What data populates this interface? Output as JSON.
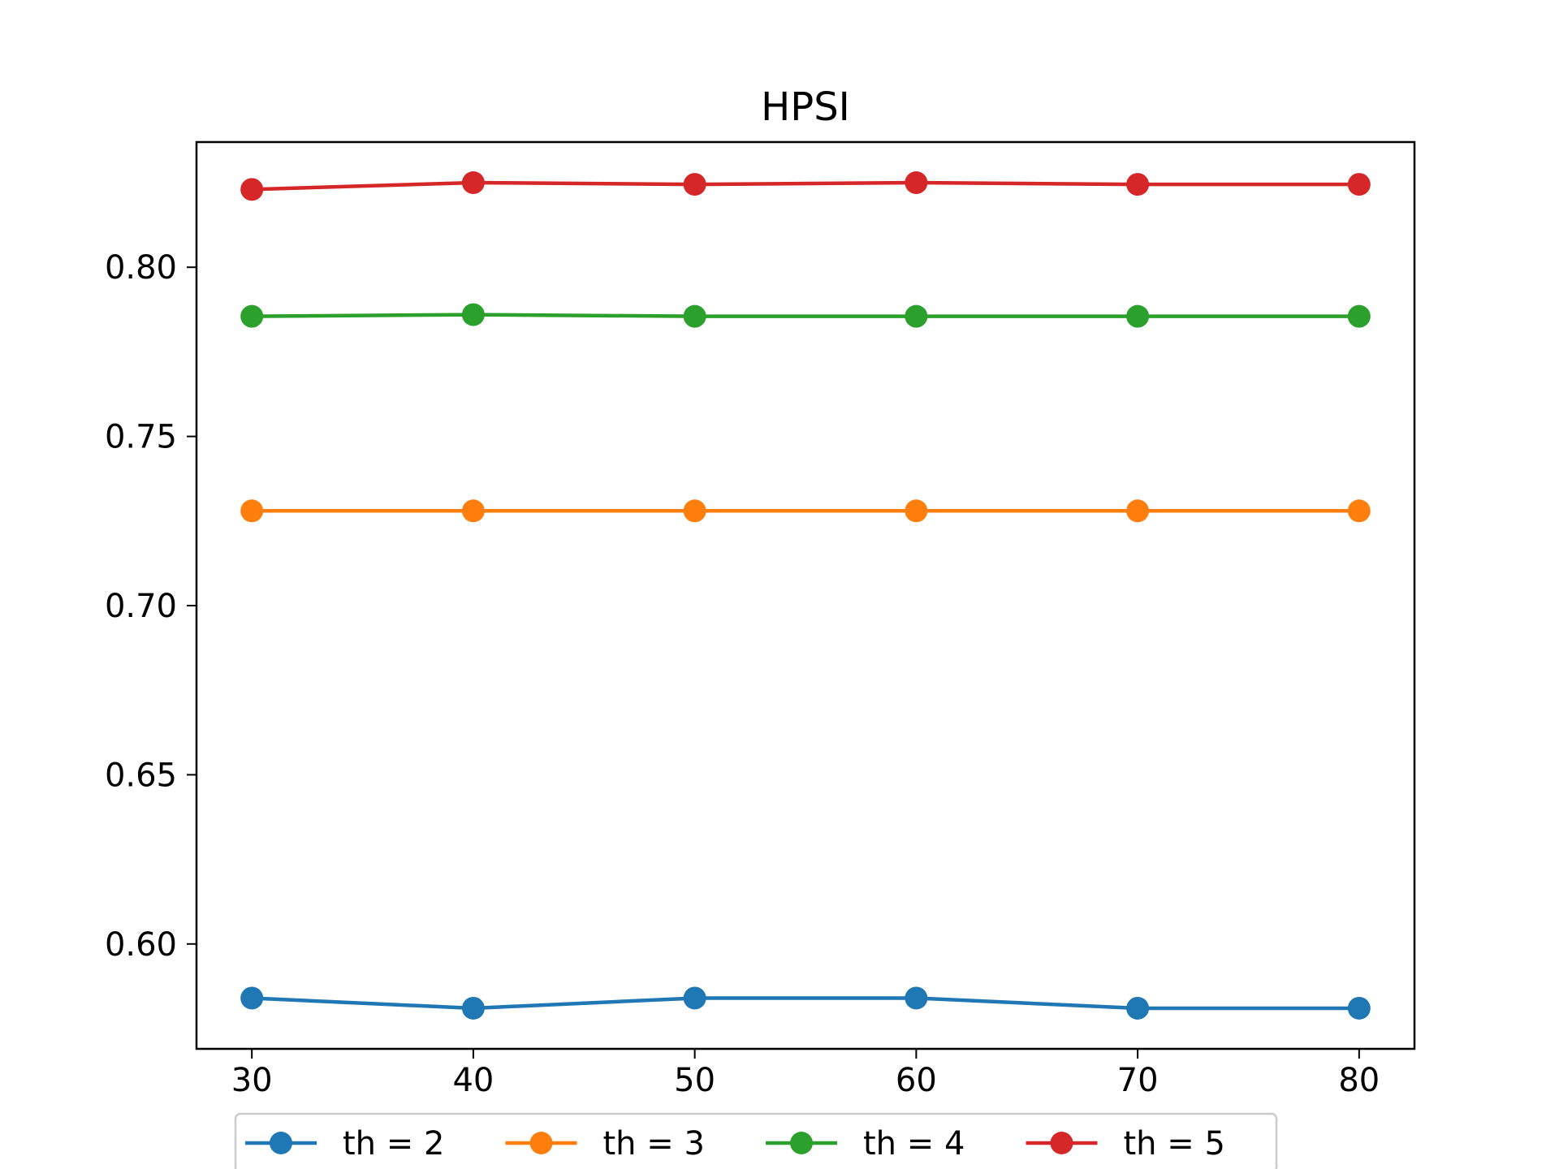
{
  "chart_data": {
    "type": "line",
    "title": "HPSI",
    "xlabel": "",
    "ylabel": "",
    "x": [
      30,
      40,
      50,
      60,
      70,
      80
    ],
    "xlim": [
      27.5,
      82.5
    ],
    "ylim": [
      0.569,
      0.837
    ],
    "xticks": [
      30,
      40,
      50,
      60,
      70,
      80
    ],
    "xtick_labels": [
      "30",
      "40",
      "50",
      "60",
      "70",
      "80"
    ],
    "yticks": [
      0.6,
      0.65,
      0.7,
      0.75,
      0.8
    ],
    "ytick_labels": [
      "0.60",
      "0.65",
      "0.70",
      "0.75",
      "0.80"
    ],
    "grid": false,
    "legend_position": "below-center",
    "series": [
      {
        "name": "th = 2",
        "color": "#1f77b4",
        "marker": "circle",
        "values": [
          0.584,
          0.581,
          0.584,
          0.584,
          0.581,
          0.581
        ]
      },
      {
        "name": "th = 3",
        "color": "#ff7f0e",
        "marker": "circle",
        "values": [
          0.728,
          0.728,
          0.728,
          0.728,
          0.728,
          0.728
        ]
      },
      {
        "name": "th = 4",
        "color": "#2ca02c",
        "marker": "circle",
        "values": [
          0.7855,
          0.786,
          0.7855,
          0.7855,
          0.7855,
          0.7855
        ]
      },
      {
        "name": "th = 5",
        "color": "#d62728",
        "marker": "circle",
        "values": [
          0.823,
          0.825,
          0.8245,
          0.825,
          0.8245,
          0.8245
        ]
      }
    ]
  }
}
